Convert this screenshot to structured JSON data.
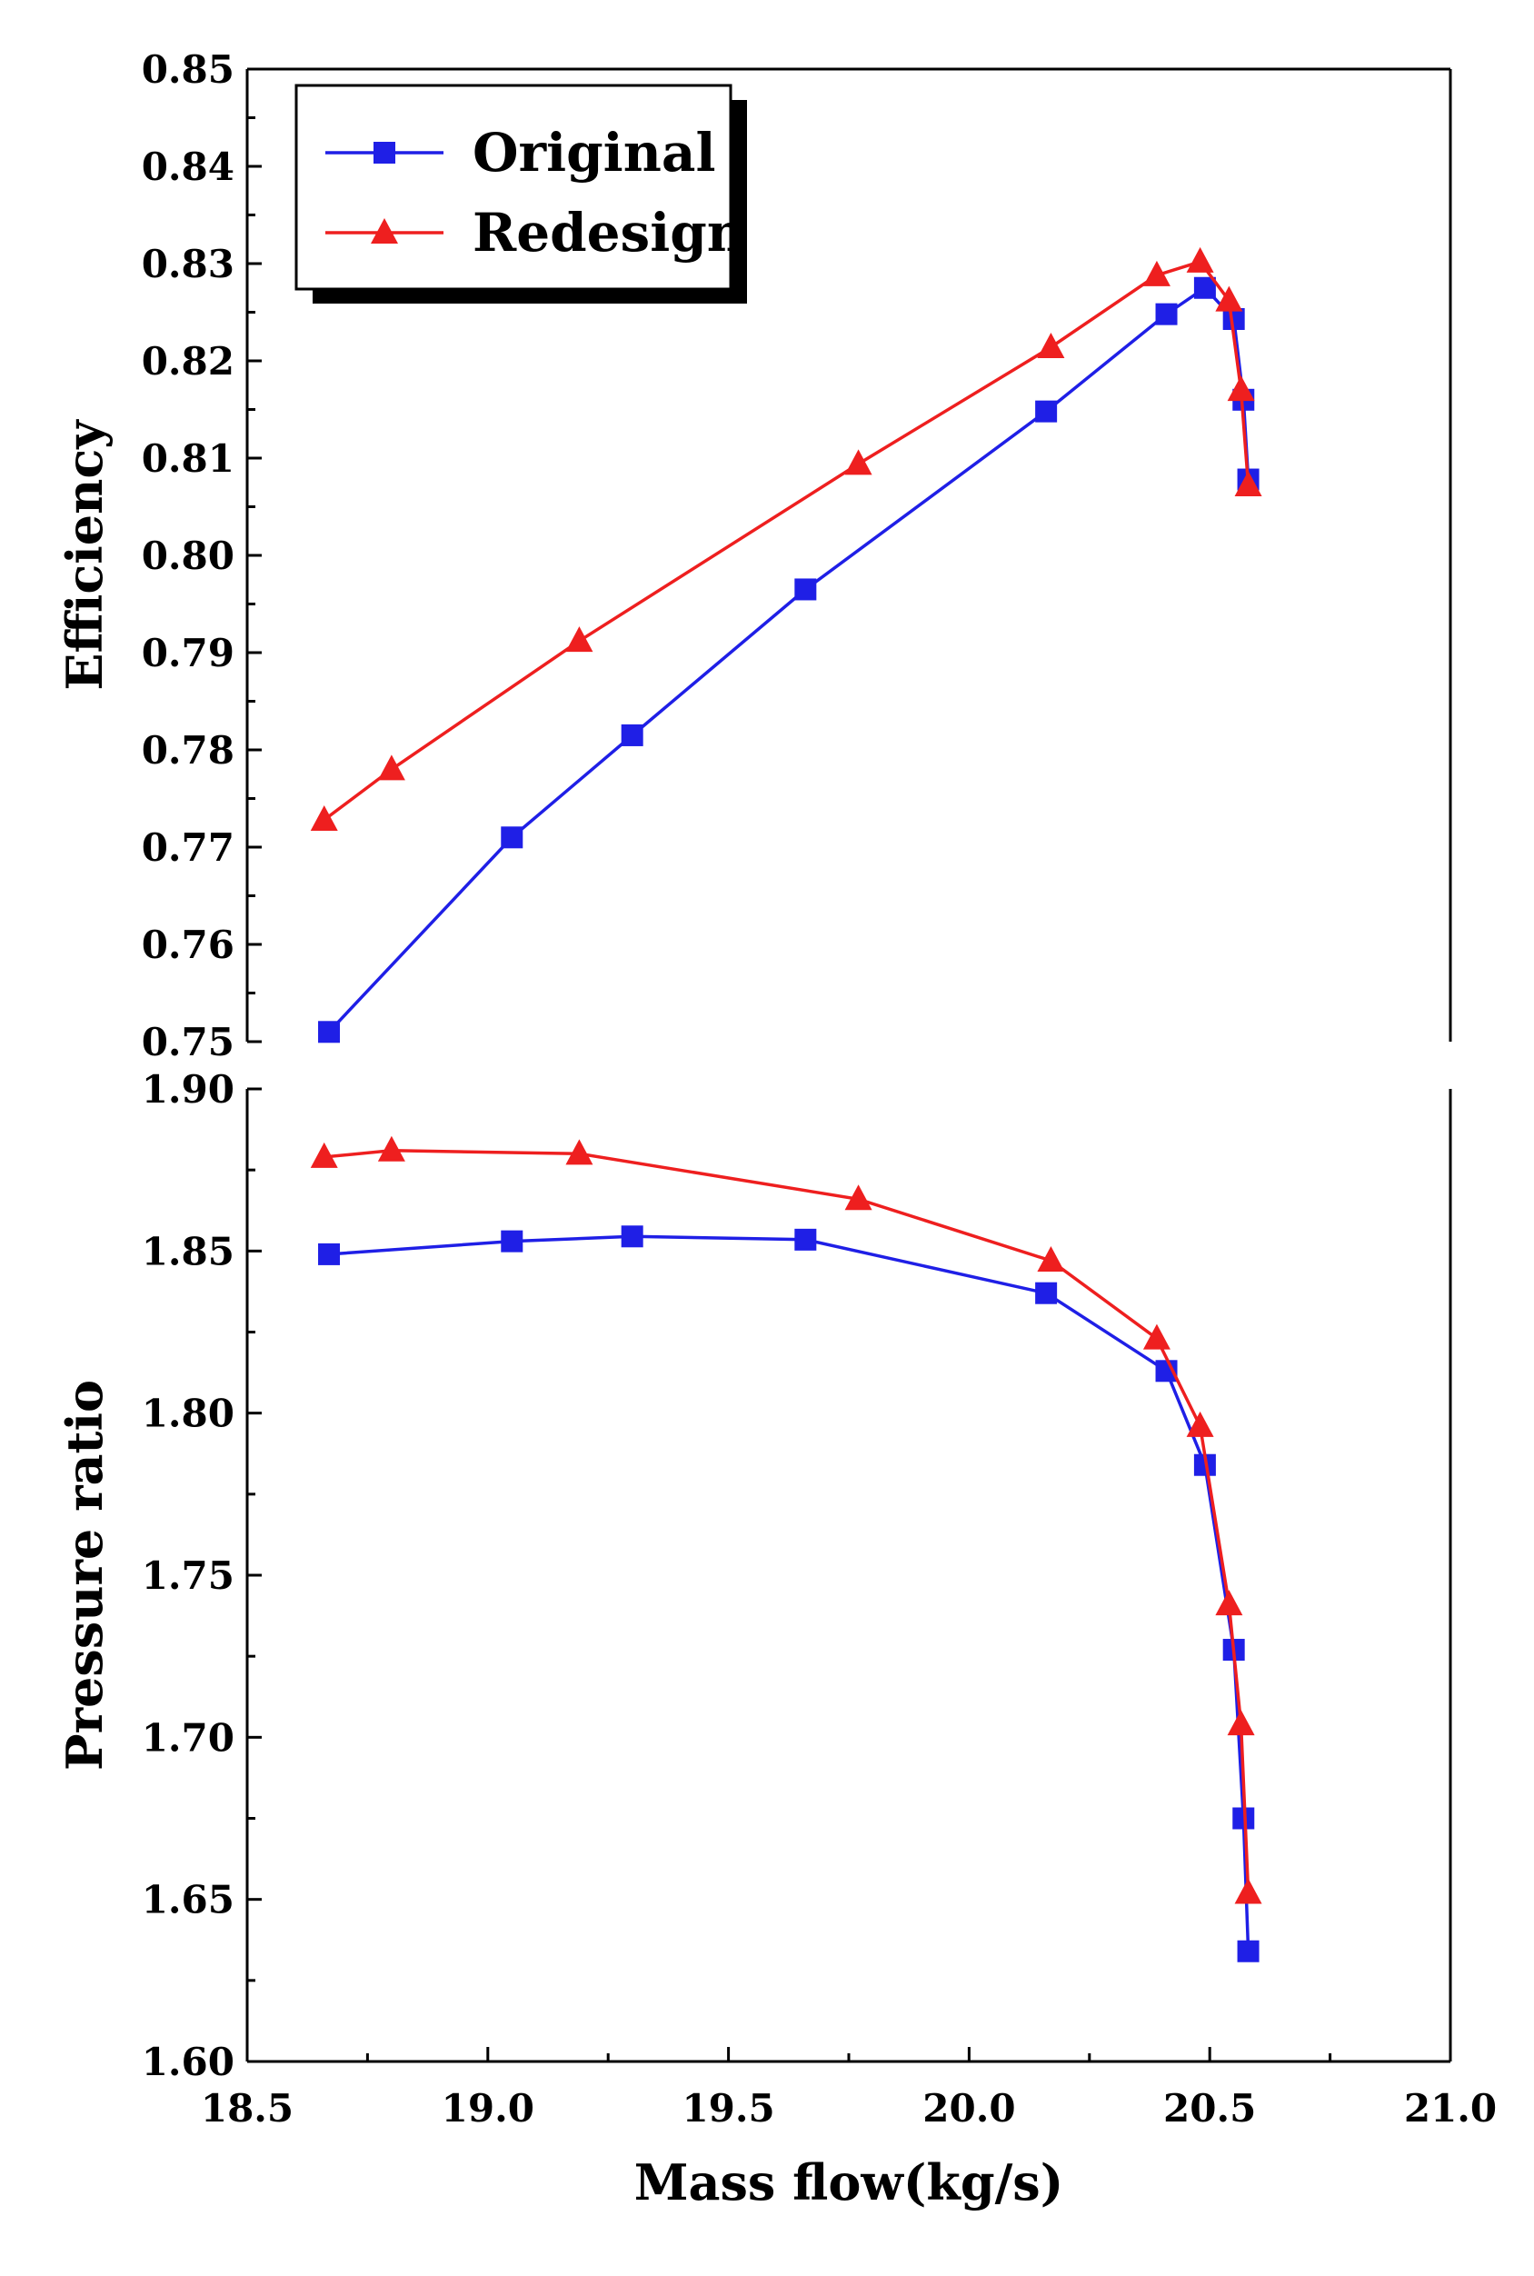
{
  "chart_data": [
    {
      "type": "line",
      "panel": "top",
      "title": "",
      "xlabel": "",
      "ylabel": "Efficiency",
      "xlim": [
        18.5,
        21.0
      ],
      "ylim": [
        0.75,
        0.85
      ],
      "yticks": [
        "0.75",
        "0.76",
        "0.77",
        "0.78",
        "0.79",
        "0.80",
        "0.81",
        "0.82",
        "0.83",
        "0.84",
        "0.85"
      ],
      "grid": false,
      "legend": {
        "position": "top-left",
        "entries": [
          "Original",
          "Redesign"
        ]
      },
      "series": [
        {
          "name": "Original",
          "color": "#1f1fe6",
          "marker": "square",
          "x": [
            18.67,
            19.05,
            19.3,
            19.66,
            20.16,
            20.41,
            20.49,
            20.55,
            20.57,
            20.58
          ],
          "y": [
            0.751,
            0.771,
            0.7815,
            0.7965,
            0.8148,
            0.8248,
            0.8275,
            0.8243,
            0.816,
            0.8078
          ]
        },
        {
          "name": "Redesign",
          "color": "#ee1f1f",
          "marker": "triangle",
          "x": [
            18.66,
            18.8,
            19.19,
            19.77,
            20.17,
            20.39,
            20.48,
            20.54,
            20.565,
            20.58
          ],
          "y": [
            0.7728,
            0.778,
            0.7912,
            0.8094,
            0.8214,
            0.8288,
            0.8302,
            0.8262,
            0.817,
            0.8072
          ]
        }
      ]
    },
    {
      "type": "line",
      "panel": "bottom",
      "title": "",
      "xlabel": "Mass flow(kg/s)",
      "ylabel": "Pressure ratio",
      "xlim": [
        18.5,
        21.0
      ],
      "ylim": [
        1.6,
        1.9
      ],
      "xticks": [
        "18.5",
        "19.0",
        "19.5",
        "20.0",
        "20.5",
        "21.0"
      ],
      "yticks": [
        "1.60",
        "1.65",
        "1.70",
        "1.75",
        "1.80",
        "1.85",
        "1.90"
      ],
      "grid": false,
      "series": [
        {
          "name": "Original",
          "color": "#1f1fe6",
          "marker": "square",
          "x": [
            18.67,
            19.05,
            19.3,
            19.66,
            20.16,
            20.41,
            20.49,
            20.55,
            20.57,
            20.58
          ],
          "y": [
            1.849,
            1.853,
            1.8545,
            1.8535,
            1.837,
            1.813,
            1.784,
            1.727,
            1.675,
            1.634
          ]
        },
        {
          "name": "Redesign",
          "color": "#ee1f1f",
          "marker": "triangle",
          "x": [
            18.66,
            18.8,
            19.19,
            19.77,
            20.17,
            20.39,
            20.48,
            20.54,
            20.565,
            20.58
          ],
          "y": [
            1.879,
            1.881,
            1.88,
            1.866,
            1.847,
            1.823,
            1.796,
            1.741,
            1.704,
            1.652
          ]
        }
      ]
    }
  ]
}
